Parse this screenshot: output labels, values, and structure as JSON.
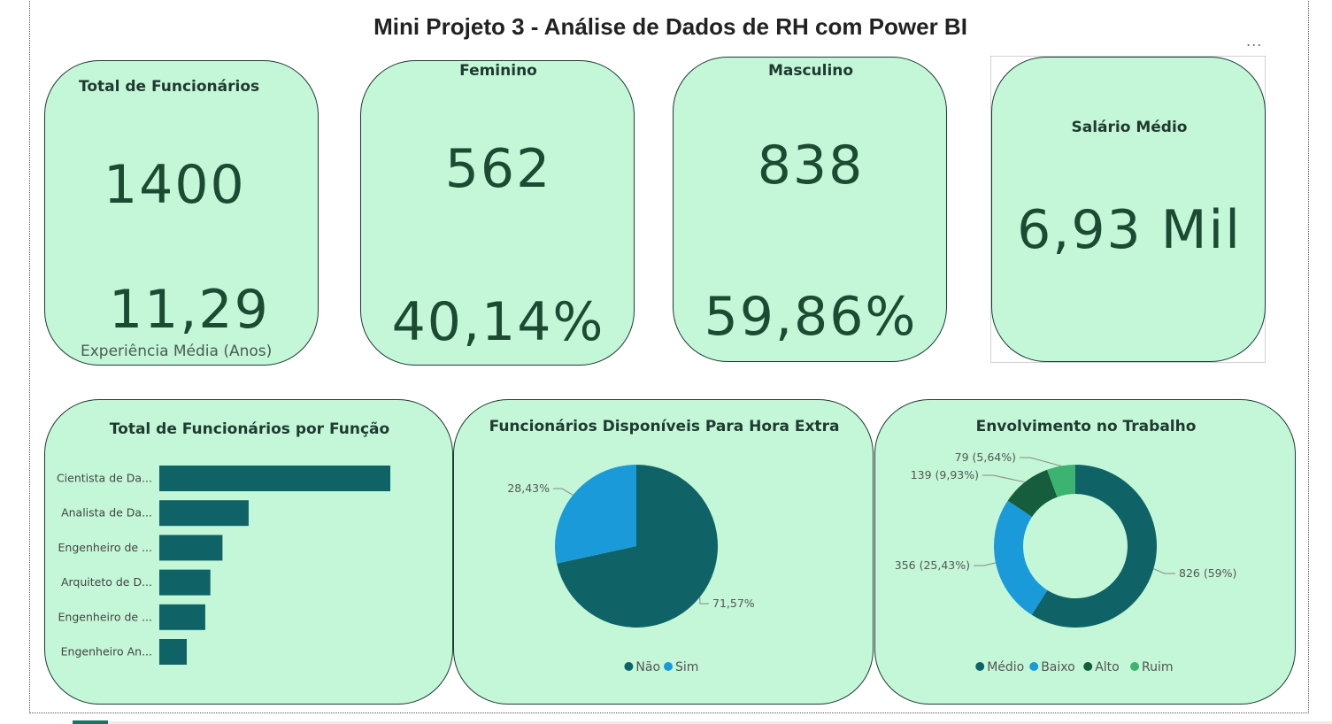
{
  "header": {
    "title": "Mini Projeto 3 - Análise de Dados de RH com Power BI",
    "more_label": "..."
  },
  "kpis": {
    "total": {
      "label": "Total de Funcionários",
      "value": "1400",
      "secondary_value": "11,29",
      "secondary_label": "Experiência Média (Anos)"
    },
    "female": {
      "label": "Feminino",
      "value": "562",
      "percent": "40,14%"
    },
    "male": {
      "label": "Masculino",
      "value": "838",
      "percent": "59,86%"
    },
    "salary": {
      "label": "Salário Médio",
      "value": "6,93 Mil"
    }
  },
  "colors": {
    "card_bg": "#c3f7d7",
    "teal": "#0f6367",
    "blue": "#1b9ad9",
    "dark_green": "#155d3c",
    "light_green": "#3cb371"
  },
  "chart_data": [
    {
      "type": "bar",
      "title": "Total de Funcionários por Função",
      "categories": [
        "Cientista de Da...",
        "Analista de Da...",
        "Engenheiro de ...",
        "Arquiteto de D...",
        "Engenheiro de ...",
        "Engenheiro An..."
      ],
      "values": [
        362,
        140,
        99,
        80,
        72,
        43
      ],
      "orientation": "horizontal",
      "color": "#0f6367"
    },
    {
      "type": "pie",
      "title": "Funcionários Disponíveis Para Hora Extra",
      "labels": [
        "Não",
        "Sim"
      ],
      "values": [
        71.57,
        28.43
      ],
      "data_labels": [
        "71,57%",
        "28,43%"
      ],
      "colors": [
        "#0f6367",
        "#1b9ad9"
      ],
      "legend": "bottom-center"
    },
    {
      "type": "pie",
      "subtype": "donut",
      "title": "Envolvimento no Trabalho",
      "labels": [
        "Médio",
        "Baixo",
        "Alto",
        "Ruim"
      ],
      "values": [
        826,
        356,
        139,
        79
      ],
      "data_labels": [
        "826 (59%)",
        "356 (25,43%)",
        "139 (9,93%)",
        "79 (5,64%)"
      ],
      "colors": [
        "#0f6367",
        "#1b9ad9",
        "#155d3c",
        "#3cb371"
      ],
      "legend": "bottom-center"
    }
  ]
}
